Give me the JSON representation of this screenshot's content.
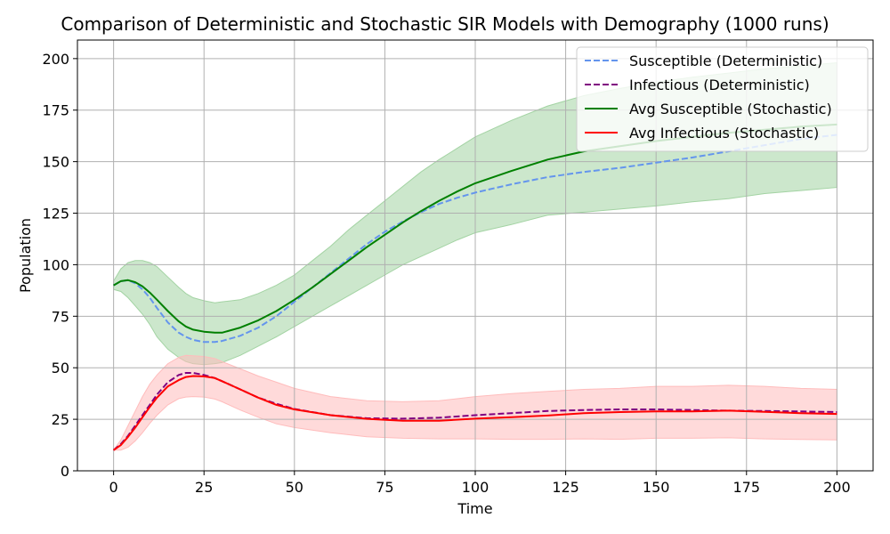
{
  "chart_data": {
    "type": "line",
    "title": "Comparison of Deterministic and Stochastic SIR Models with Demography (1000 runs)",
    "xlabel": "Time",
    "ylabel": "Population",
    "xlim": [
      -10,
      210
    ],
    "ylim": [
      0,
      209
    ],
    "xticks": [
      0,
      25,
      50,
      75,
      100,
      125,
      150,
      175,
      200
    ],
    "yticks": [
      0,
      25,
      50,
      75,
      100,
      125,
      150,
      175,
      200
    ],
    "grid": true,
    "legend_position": "top-right",
    "series": [
      {
        "name": "Susceptible (Deterministic)",
        "color": "#6495ed",
        "dash": "dashed",
        "x": [
          0,
          2,
          4,
          6,
          8,
          10,
          12,
          15,
          18,
          20,
          22,
          25,
          28,
          30,
          35,
          40,
          45,
          50,
          55,
          60,
          65,
          70,
          75,
          80,
          85,
          90,
          95,
          100,
          110,
          120,
          130,
          140,
          150,
          160,
          170,
          180,
          190,
          200
        ],
        "y": [
          90,
          92,
          92.5,
          91,
          88,
          84,
          79,
          72,
          67,
          65,
          63.5,
          62.5,
          62.5,
          63,
          65.5,
          69.5,
          75,
          82,
          89,
          96,
          103,
          110,
          116,
          121,
          125.5,
          129.5,
          132.5,
          135,
          139,
          142.5,
          145,
          147,
          149.5,
          152,
          155,
          158,
          161,
          163
        ]
      },
      {
        "name": "Infectious (Deterministic)",
        "color": "#800080",
        "dash": "dashed",
        "x": [
          0,
          2,
          4,
          6,
          8,
          10,
          12,
          15,
          18,
          20,
          22,
          25,
          28,
          30,
          35,
          40,
          45,
          50,
          60,
          70,
          80,
          90,
          100,
          110,
          120,
          130,
          140,
          150,
          160,
          170,
          180,
          190,
          200
        ],
        "y": [
          10,
          13,
          17,
          22,
          27,
          32,
          37,
          43,
          46.5,
          47.5,
          47.5,
          46.5,
          45,
          43.5,
          39.5,
          35.5,
          32.5,
          30,
          27,
          25.5,
          25.3,
          25.8,
          27,
          28,
          29,
          29.5,
          29.8,
          29.8,
          29.5,
          29.2,
          29,
          28.8,
          28.5
        ]
      },
      {
        "name": "Avg Susceptible (Stochastic)",
        "color": "#008000",
        "dash": "solid",
        "band_color": "#a3d3a3",
        "x": [
          0,
          2,
          4,
          6,
          8,
          10,
          12,
          15,
          18,
          20,
          22,
          25,
          28,
          30,
          35,
          40,
          45,
          50,
          55,
          60,
          65,
          70,
          75,
          80,
          85,
          90,
          95,
          100,
          110,
          120,
          130,
          140,
          150,
          160,
          170,
          180,
          190,
          200
        ],
        "y": [
          90,
          92,
          92.5,
          91.5,
          89.5,
          86.5,
          83,
          77.5,
          72.5,
          70,
          68.5,
          67.5,
          67,
          67,
          69.5,
          73,
          77.5,
          83,
          89,
          95.5,
          102,
          108.5,
          114.5,
          120.5,
          126,
          131,
          135.5,
          139.5,
          145.5,
          151,
          155,
          157.5,
          160,
          162,
          164,
          165.5,
          167,
          168
        ],
        "lower": [
          88,
          87,
          84,
          80,
          76,
          71,
          65,
          59,
          55,
          53,
          52,
          51.5,
          52,
          52.5,
          56,
          60.5,
          65,
          70,
          75,
          80,
          85,
          90,
          95,
          100,
          104,
          108,
          112,
          115.5,
          119.5,
          124,
          125.5,
          127,
          128.5,
          130.5,
          132,
          134.5,
          136,
          137.5
        ],
        "upper": [
          92,
          98,
          101,
          102,
          102,
          101,
          99,
          94,
          89,
          86,
          84,
          82.5,
          81.5,
          82,
          83,
          86,
          90,
          95,
          102,
          109,
          117,
          124,
          131,
          138,
          145,
          151,
          156.5,
          162,
          170,
          177,
          182,
          185.5,
          188.5,
          191,
          193,
          195,
          196.5,
          198
        ]
      },
      {
        "name": "Avg Infectious (Stochastic)",
        "color": "#ff0000",
        "dash": "solid",
        "band_color": "#ffbcbc",
        "x": [
          0,
          2,
          4,
          6,
          8,
          10,
          12,
          15,
          18,
          20,
          22,
          25,
          28,
          30,
          35,
          40,
          45,
          50,
          60,
          70,
          80,
          90,
          100,
          110,
          120,
          130,
          140,
          150,
          160,
          170,
          180,
          190,
          200
        ],
        "y": [
          10,
          12.5,
          16.5,
          21,
          26,
          31,
          35.5,
          41,
          44,
          45.5,
          46,
          45.8,
          45,
          43.5,
          39.5,
          35.5,
          32,
          29.8,
          27,
          25.2,
          24.3,
          24.3,
          25.3,
          26,
          26.8,
          28,
          28.5,
          28.8,
          28.8,
          29.2,
          28.6,
          28,
          27.6
        ],
        "lower": [
          10,
          10,
          11.5,
          14.5,
          18.5,
          23,
          27,
          32,
          35,
          35.8,
          36,
          35.8,
          34.8,
          33.5,
          29.5,
          26,
          22.8,
          21,
          18.5,
          16.5,
          15.8,
          15.5,
          15.5,
          15.3,
          15.3,
          15.5,
          15.3,
          15.8,
          15.8,
          16,
          15.5,
          15.2,
          15
        ],
        "upper": [
          10,
          15,
          22,
          29,
          36,
          42,
          46.5,
          52,
          55,
          56,
          55.8,
          55.5,
          54.5,
          53,
          49.5,
          46,
          43,
          40,
          36,
          34,
          33.5,
          34,
          36,
          37.5,
          38.5,
          39.5,
          40,
          41,
          41,
          41.5,
          41,
          40,
          39.5
        ]
      }
    ]
  }
}
